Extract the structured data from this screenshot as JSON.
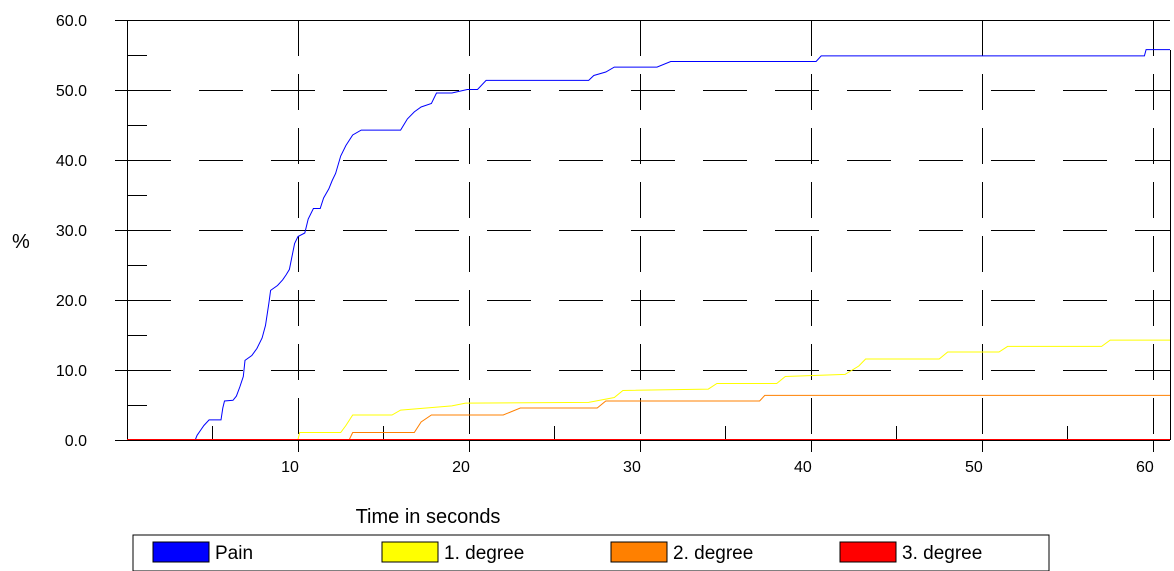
{
  "chart_data": {
    "type": "line",
    "title": "",
    "xlabel": "Time in seconds",
    "ylabel": "%",
    "xlim": [
      0,
      61
    ],
    "ylim": [
      0,
      60
    ],
    "x_ticks": [
      10,
      20,
      30,
      40,
      50,
      60
    ],
    "x_tick_labels": [
      "10",
      "20",
      "30",
      "40",
      "50",
      "60"
    ],
    "y_ticks": [
      0,
      10,
      20,
      30,
      40,
      50,
      60
    ],
    "y_tick_labels": [
      "0.0",
      "10.0",
      "20.0",
      "30.0",
      "40.0",
      "50.0",
      "60.0"
    ],
    "x_minor_ticks": [
      5,
      15,
      25,
      35,
      45,
      55
    ],
    "y_minor_ticks": [
      5,
      15,
      25,
      35,
      45,
      55
    ],
    "grid": true,
    "legend_position": "bottom",
    "series": [
      {
        "name": "Pain",
        "color": "#0000ff",
        "points": [
          [
            0,
            0
          ],
          [
            4.0,
            0
          ],
          [
            4.1,
            0.6
          ],
          [
            4.3,
            1.3
          ],
          [
            4.5,
            2.0
          ],
          [
            4.8,
            2.8
          ],
          [
            5.5,
            2.8
          ],
          [
            5.6,
            4.5
          ],
          [
            5.7,
            5.5
          ],
          [
            6.2,
            5.6
          ],
          [
            6.4,
            6.2
          ],
          [
            6.6,
            7.5
          ],
          [
            6.8,
            9.0
          ],
          [
            6.9,
            11.3
          ],
          [
            7.3,
            12.0
          ],
          [
            7.6,
            13.0
          ],
          [
            7.9,
            14.5
          ],
          [
            8.1,
            16.3
          ],
          [
            8.3,
            19.5
          ],
          [
            8.4,
            21.3
          ],
          [
            8.8,
            22.0
          ],
          [
            9.1,
            22.8
          ],
          [
            9.3,
            23.5
          ],
          [
            9.5,
            24.3
          ],
          [
            9.8,
            28.0
          ],
          [
            10.0,
            29.0
          ],
          [
            10.4,
            29.5
          ],
          [
            10.6,
            31.5
          ],
          [
            10.9,
            33.0
          ],
          [
            11.3,
            33.0
          ],
          [
            11.5,
            34.5
          ],
          [
            11.8,
            35.8
          ],
          [
            12.0,
            37.0
          ],
          [
            12.2,
            38.0
          ],
          [
            12.5,
            40.5
          ],
          [
            12.8,
            42.0
          ],
          [
            13.2,
            43.5
          ],
          [
            13.7,
            44.2
          ],
          [
            16.0,
            44.2
          ],
          [
            16.4,
            45.8
          ],
          [
            16.8,
            46.8
          ],
          [
            17.2,
            47.5
          ],
          [
            17.8,
            48.0
          ],
          [
            18.1,
            49.5
          ],
          [
            19.0,
            49.5
          ],
          [
            19.9,
            50.0
          ],
          [
            20.5,
            50.0
          ],
          [
            21.0,
            51.3
          ],
          [
            27.0,
            51.3
          ],
          [
            27.3,
            52.0
          ],
          [
            28.0,
            52.5
          ],
          [
            28.5,
            53.2
          ],
          [
            31.0,
            53.2
          ],
          [
            31.8,
            54.0
          ],
          [
            40.3,
            54.0
          ],
          [
            40.6,
            54.8
          ],
          [
            59.5,
            54.8
          ],
          [
            59.6,
            55.7
          ],
          [
            61,
            55.7
          ]
        ]
      },
      {
        "name": "1. degree",
        "color": "#ffff00",
        "points": [
          [
            0,
            0
          ],
          [
            10.0,
            0
          ],
          [
            10.1,
            1.0
          ],
          [
            12.5,
            1.0
          ],
          [
            12.8,
            2.0
          ],
          [
            13.2,
            3.5
          ],
          [
            15.5,
            3.5
          ],
          [
            16.0,
            4.2
          ],
          [
            19.0,
            4.8
          ],
          [
            19.8,
            5.2
          ],
          [
            27.0,
            5.3
          ],
          [
            28.5,
            6.0
          ],
          [
            29.0,
            7.0
          ],
          [
            34.0,
            7.2
          ],
          [
            34.5,
            8.0
          ],
          [
            38.0,
            8.0
          ],
          [
            38.5,
            9.0
          ],
          [
            42.0,
            9.3
          ],
          [
            42.8,
            10.5
          ],
          [
            43.2,
            11.5
          ],
          [
            47.5,
            11.5
          ],
          [
            48.0,
            12.5
          ],
          [
            51.0,
            12.5
          ],
          [
            51.5,
            13.3
          ],
          [
            57.0,
            13.3
          ],
          [
            57.5,
            14.2
          ],
          [
            61,
            14.2
          ]
        ]
      },
      {
        "name": "2. degree",
        "color": "#ff8000",
        "points": [
          [
            0,
            0
          ],
          [
            13.0,
            0
          ],
          [
            13.2,
            1.0
          ],
          [
            16.8,
            1.0
          ],
          [
            17.2,
            2.5
          ],
          [
            17.8,
            3.5
          ],
          [
            22.0,
            3.5
          ],
          [
            23.0,
            4.5
          ],
          [
            27.5,
            4.5
          ],
          [
            28.0,
            5.5
          ],
          [
            37.0,
            5.5
          ],
          [
            37.3,
            6.3
          ],
          [
            61,
            6.3
          ]
        ]
      },
      {
        "name": "3. degree",
        "color": "#ff0000",
        "points": [
          [
            0,
            0
          ],
          [
            61,
            0
          ]
        ]
      }
    ]
  }
}
